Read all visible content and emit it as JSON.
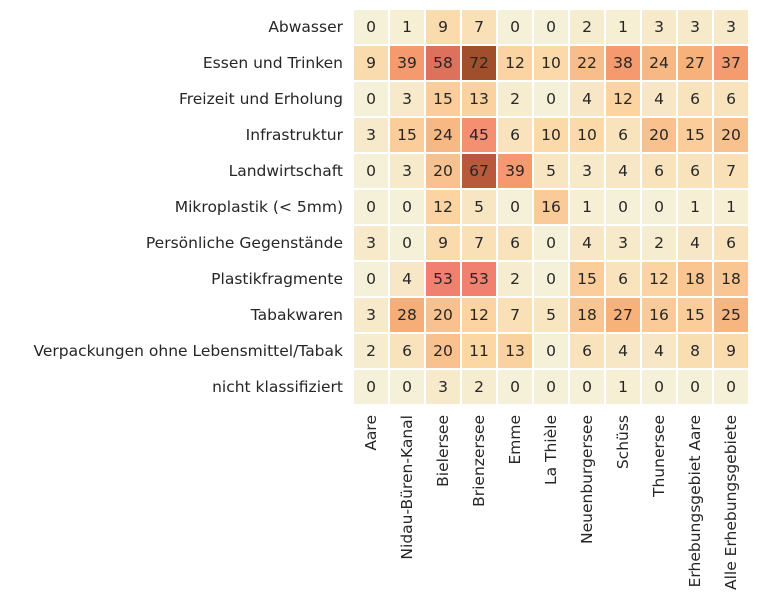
{
  "chart_data": {
    "type": "heatmap",
    "title": "",
    "xlabel": "",
    "ylabel": "",
    "rows": [
      "Abwasser",
      "Essen und Trinken",
      "Freizeit und Erholung",
      "Infrastruktur",
      "Landwirtschaft",
      "Mikroplastik (< 5mm)",
      "Persönliche Gegenstände",
      "Plastikfragmente",
      "Tabakwaren",
      "Verpackungen ohne Lebensmittel/Tabak",
      "nicht klassifiziert"
    ],
    "columns": [
      "Aare",
      "Nidau-Büren-Kanal",
      "Bielersee",
      "Brienzersee",
      "Emme",
      "La Thièle",
      "Neuenburgersee",
      "Schüss",
      "Thunersee",
      "Erhebungsgebiet Aare",
      "Alle Erhebungsgebiete"
    ],
    "values": [
      [
        0,
        1,
        9,
        7,
        0,
        0,
        2,
        1,
        3,
        3,
        3
      ],
      [
        9,
        39,
        58,
        72,
        12,
        10,
        22,
        38,
        24,
        27,
        37
      ],
      [
        0,
        3,
        15,
        13,
        2,
        0,
        4,
        12,
        4,
        6,
        6
      ],
      [
        3,
        15,
        24,
        45,
        6,
        10,
        10,
        6,
        20,
        15,
        20
      ],
      [
        0,
        3,
        20,
        67,
        39,
        5,
        3,
        4,
        6,
        6,
        7
      ],
      [
        0,
        0,
        12,
        5,
        0,
        16,
        1,
        0,
        0,
        1,
        1
      ],
      [
        3,
        0,
        9,
        7,
        6,
        0,
        4,
        3,
        2,
        4,
        6
      ],
      [
        0,
        4,
        53,
        53,
        2,
        0,
        15,
        6,
        12,
        18,
        18
      ],
      [
        3,
        28,
        20,
        12,
        7,
        5,
        18,
        27,
        16,
        15,
        25
      ],
      [
        2,
        6,
        20,
        11,
        13,
        0,
        6,
        4,
        4,
        8,
        9
      ],
      [
        0,
        0,
        3,
        2,
        0,
        0,
        0,
        1,
        0,
        0,
        0
      ]
    ],
    "value_range": [
      0,
      72
    ],
    "colorbar": false,
    "colors": {
      "low": "#f5f1d9",
      "mid_low": "#fbd7a5",
      "mid": "#f5a46d",
      "mid_high": "#f48373",
      "high": "#c25e43",
      "max": "#a04f2d",
      "text_dark": "#262626",
      "text_light": "#f5f1e3",
      "cell_border": "#ffffff"
    }
  }
}
